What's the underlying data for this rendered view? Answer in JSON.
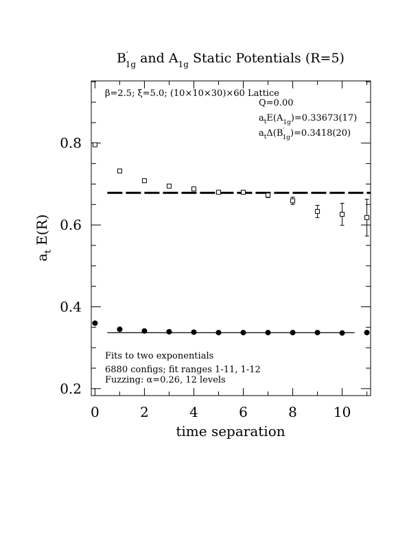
{
  "chart_data": {
    "type": "scatter",
    "title": {
      "b_label": "B",
      "b_prime": "′",
      "b_sub": "1g",
      "and": " and ",
      "a_label": "A",
      "a_sub": "1g",
      "rest": " Static Potentials (R=5)"
    },
    "xlabel": "time separation",
    "ylabel": {
      "main": "a",
      "sub": "t",
      "rest": " E(R)"
    },
    "xlim": [
      -0.15,
      11.15
    ],
    "ylim": [
      0.183,
      0.952
    ],
    "xticks": [
      0,
      2,
      4,
      6,
      8,
      10
    ],
    "yticks": [
      0.2,
      0.4,
      0.6,
      0.8
    ],
    "xtick_labels": [
      "0",
      "2",
      "4",
      "6",
      "8",
      "10"
    ],
    "ytick_labels": [
      "0.2",
      "0.4",
      "0.6",
      "0.8"
    ],
    "annotations": {
      "lattice": "β=2.5; ξ=5.0; (10×10×30)×60 Lattice",
      "q": "Q=0.00",
      "ea_a": "a",
      "ea_t": "t",
      "ea_mid": "E(A",
      "ea_sub": "1g",
      "ea_val": ")=0.33673(17)",
      "db_a": "a",
      "db_t": "t",
      "db_mid": "Δ(B",
      "db_prime": "′",
      "db_sub": "1g",
      "db_val": ")=0.3418(20)",
      "fits": "Fits to two exponentials",
      "configs": "6880 configs; fit ranges 1-11, 1-12",
      "fuzzing": "Fuzzing: α=0.26, 12 levels"
    },
    "series": [
      {
        "marker": "open-square",
        "x": [
          0,
          1,
          2,
          3,
          4,
          5,
          6,
          7,
          8,
          9,
          10,
          11
        ],
        "y": [
          0.796,
          0.732,
          0.708,
          0.695,
          0.688,
          0.68,
          0.68,
          0.673,
          0.659,
          0.633,
          0.626,
          0.618
        ],
        "err": [
          0.002,
          0.002,
          0.002,
          0.002,
          0.003,
          0.003,
          0.004,
          0.006,
          0.009,
          0.015,
          0.027,
          0.045
        ]
      },
      {
        "marker": "filled-circle",
        "x": [
          0,
          1,
          2,
          3,
          4,
          5,
          6,
          7,
          8,
          9,
          10,
          11
        ],
        "y": [
          0.36,
          0.345,
          0.341,
          0.339,
          0.338,
          0.337,
          0.337,
          0.337,
          0.337,
          0.337,
          0.336,
          0.337
        ],
        "err": [
          0.0005,
          0.0005,
          0.0005,
          0.0005,
          0.0005,
          0.0005,
          0.0005,
          0.0005,
          0.0005,
          0.0006,
          0.0008,
          0.001
        ]
      }
    ],
    "fit_lines": [
      {
        "style": "dashed",
        "value": 0.67853,
        "x_range": [
          0.5,
          11.15
        ]
      },
      {
        "style": "solid",
        "value": 0.33673,
        "x_range": [
          0.5,
          10.5
        ]
      }
    ],
    "grid": false,
    "legend": "none"
  }
}
